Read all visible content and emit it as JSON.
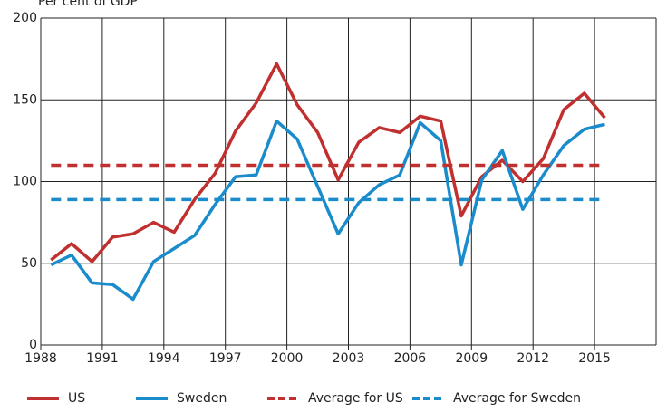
{
  "chart_data": {
    "type": "line",
    "title": "Per cent of GDP",
    "xlim": [
      1988,
      2018
    ],
    "xticks": [
      1988,
      1991,
      1994,
      1997,
      2000,
      2003,
      2006,
      2009,
      2012,
      2015
    ],
    "ylim": [
      0,
      200
    ],
    "yticks": [
      0,
      50,
      100,
      150,
      200
    ],
    "grid": true,
    "legend": "bottom",
    "series": [
      {
        "name": "US",
        "color": "#c0302f",
        "dashed": false,
        "x": [
          1988.5,
          1989.5,
          1990.5,
          1991.5,
          1992.5,
          1993.5,
          1994.5,
          1995.5,
          1996.5,
          1997.5,
          1998.5,
          1999.5,
          2000.5,
          2001.5,
          2002.5,
          2003.5,
          2004.5,
          2005.5,
          2006.5,
          2007.5,
          2008.5,
          2009.5,
          2010.5,
          2011.5,
          2012.5,
          2013.5,
          2014.5,
          2015.5
        ],
        "values": [
          52,
          62,
          51,
          66,
          68,
          75,
          69,
          89,
          105,
          131,
          148,
          172,
          147,
          130,
          101,
          124,
          133,
          130,
          140,
          137,
          79,
          103,
          113,
          100,
          114,
          144,
          154,
          139
        ]
      },
      {
        "name": "Sweden",
        "color": "#1a8ccc",
        "dashed": false,
        "x": [
          1988.5,
          1989.5,
          1990.5,
          1991.5,
          1992.5,
          1993.5,
          1994.5,
          1995.5,
          1996.5,
          1997.5,
          1998.5,
          1999.5,
          2000.5,
          2001.5,
          2002.5,
          2003.5,
          2004.5,
          2005.5,
          2006.5,
          2007.5,
          2008.5,
          2009.5,
          2010.5,
          2011.5,
          2012.5,
          2013.5,
          2014.5,
          2015.5
        ],
        "values": [
          49,
          55,
          38,
          37,
          28,
          51,
          59,
          67,
          86,
          103,
          104,
          137,
          126,
          97,
          68,
          87,
          98,
          104,
          136,
          125,
          49,
          101,
          119,
          83,
          104,
          122,
          132,
          135
        ]
      },
      {
        "name": "Average for US",
        "color": "#c0302f",
        "dashed": true,
        "x": [
          1988.5,
          2015.5
        ],
        "values": [
          110,
          110
        ]
      },
      {
        "name": "Average for Sweden",
        "color": "#1a8ccc",
        "dashed": true,
        "x": [
          1988.5,
          2015.5
        ],
        "values": [
          89,
          89
        ]
      }
    ]
  }
}
